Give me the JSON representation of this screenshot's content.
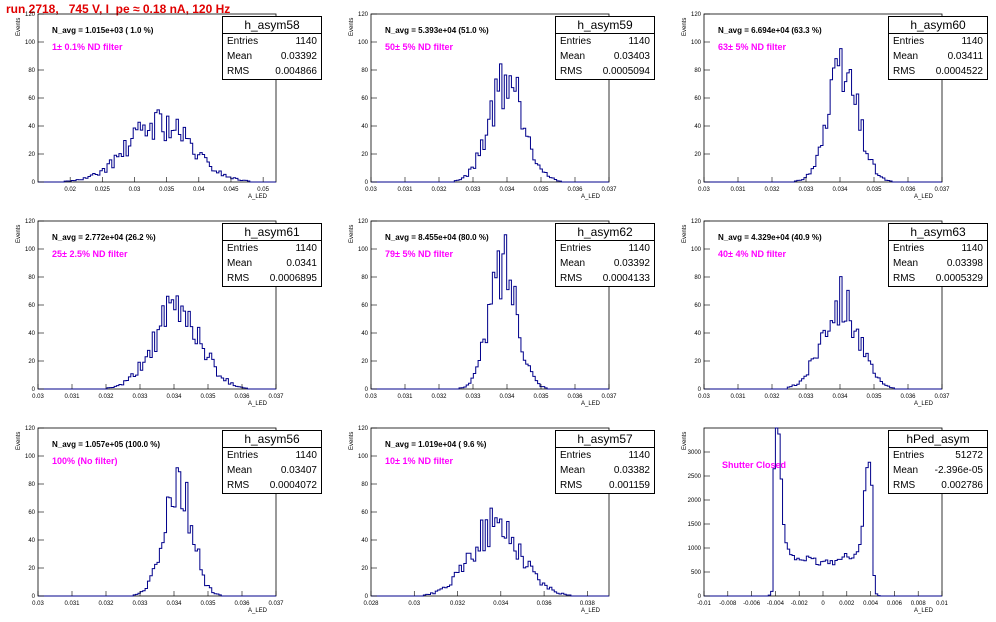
{
  "header": {
    "title": "run 2718,   745 V, I_pe ≈ 0.18 nA, 120 Hz"
  },
  "colors": {
    "histogram": "#00008b",
    "title_red": "#e00000",
    "note_magenta": "#ff00ff"
  },
  "chart_data": [
    {
      "type": "bar",
      "name": "h_asym58",
      "navg": "N_avg = 1.015e+03 ( 1.0 %)",
      "note": "1± 0.1% ND filter",
      "entries": "1140",
      "mean": "0.03392",
      "rms": "0.004866",
      "xlabel": "A_LED",
      "ylabel": "Events",
      "xlim": [
        0.015,
        0.052
      ],
      "ylim": [
        0,
        120
      ],
      "xticks": [
        0.02,
        0.025,
        0.03,
        0.035,
        0.04,
        0.045,
        0.05
      ],
      "xtick_labels": [
        "0.02",
        "0.025",
        "0.03",
        "0.035",
        "0.04",
        "0.045",
        "0.05"
      ],
      "yticks": [
        0,
        20,
        40,
        60,
        80,
        100,
        120
      ],
      "mu": 0.0339,
      "sigma": 0.0049,
      "peak": 42,
      "nbins": 100,
      "seed": 58
    },
    {
      "type": "bar",
      "name": "h_asym59",
      "navg": "N_avg = 5.393e+04 (51.0 %)",
      "note": "50± 5% ND filter",
      "entries": "1140",
      "mean": "0.03403",
      "rms": "0.0005094",
      "xlabel": "A_LED",
      "ylabel": "Events",
      "xlim": [
        0.03,
        0.037
      ],
      "ylim": [
        0,
        120
      ],
      "xticks": [
        0.03,
        0.031,
        0.032,
        0.033,
        0.034,
        0.035,
        0.036,
        0.037
      ],
      "xtick_labels": [
        "0.03",
        "0.031",
        "0.032",
        "0.033",
        "0.034",
        "0.035",
        "0.036",
        "0.037"
      ],
      "yticks": [
        0,
        20,
        40,
        60,
        80,
        100,
        120
      ],
      "mu": 0.034,
      "sigma": 0.00051,
      "peak": 75,
      "nbins": 100,
      "seed": 59
    },
    {
      "type": "bar",
      "name": "h_asym60",
      "navg": "N_avg = 6.694e+04 (63.3 %)",
      "note": "63± 5% ND filter",
      "entries": "1140",
      "mean": "0.03411",
      "rms": "0.0004522",
      "xlabel": "A_LED",
      "ylabel": "Events",
      "xlim": [
        0.03,
        0.037
      ],
      "ylim": [
        0,
        120
      ],
      "xticks": [
        0.03,
        0.031,
        0.032,
        0.033,
        0.034,
        0.035,
        0.036,
        0.037
      ],
      "xtick_labels": [
        "0.03",
        "0.031",
        "0.032",
        "0.033",
        "0.034",
        "0.035",
        "0.036",
        "0.037"
      ],
      "yticks": [
        0,
        20,
        40,
        60,
        80,
        100,
        120
      ],
      "mu": 0.0341,
      "sigma": 0.00045,
      "peak": 80,
      "nbins": 100,
      "seed": 60
    },
    {
      "type": "bar",
      "name": "h_asym61",
      "navg": "N_avg = 2.772e+04 (26.2 %)",
      "note": "25± 2.5% ND filter",
      "entries": "1140",
      "mean": "0.0341",
      "rms": "0.0006895",
      "xlabel": "A_LED",
      "ylabel": "Events",
      "xlim": [
        0.03,
        0.037
      ],
      "ylim": [
        0,
        120
      ],
      "xticks": [
        0.03,
        0.031,
        0.032,
        0.033,
        0.034,
        0.035,
        0.036,
        0.037
      ],
      "xtick_labels": [
        "0.03",
        "0.031",
        "0.032",
        "0.033",
        "0.034",
        "0.035",
        "0.036",
        "0.037"
      ],
      "yticks": [
        0,
        20,
        40,
        60,
        80,
        100,
        120
      ],
      "mu": 0.0341,
      "sigma": 0.00069,
      "peak": 56,
      "nbins": 100,
      "seed": 61
    },
    {
      "type": "bar",
      "name": "h_asym62",
      "navg": "N_avg = 8.455e+04 (80.0 %)",
      "note": "79± 5% ND filter",
      "entries": "1140",
      "mean": "0.03392",
      "rms": "0.0004133",
      "xlabel": "A_LED",
      "ylabel": "Events",
      "xlim": [
        0.03,
        0.037
      ],
      "ylim": [
        0,
        120
      ],
      "xticks": [
        0.03,
        0.031,
        0.032,
        0.033,
        0.034,
        0.035,
        0.036,
        0.037
      ],
      "xtick_labels": [
        "0.03",
        "0.031",
        "0.032",
        "0.033",
        "0.034",
        "0.035",
        "0.036",
        "0.037"
      ],
      "yticks": [
        0,
        20,
        40,
        60,
        80,
        100,
        120
      ],
      "mu": 0.0339,
      "sigma": 0.00041,
      "peak": 90,
      "nbins": 100,
      "seed": 62
    },
    {
      "type": "bar",
      "name": "h_asym63",
      "navg": "N_avg = 4.329e+04 (40.9 %)",
      "note": "40± 4% ND filter",
      "entries": "1140",
      "mean": "0.03398",
      "rms": "0.0005329",
      "xlabel": "A_LED",
      "ylabel": "Events",
      "xlim": [
        0.03,
        0.037
      ],
      "ylim": [
        0,
        120
      ],
      "xticks": [
        0.03,
        0.031,
        0.032,
        0.033,
        0.034,
        0.035,
        0.036,
        0.037
      ],
      "xtick_labels": [
        "0.03",
        "0.031",
        "0.032",
        "0.033",
        "0.034",
        "0.035",
        "0.036",
        "0.037"
      ],
      "yticks": [
        0,
        20,
        40,
        60,
        80,
        100,
        120
      ],
      "mu": 0.034,
      "sigma": 0.00053,
      "peak": 65,
      "nbins": 100,
      "seed": 63
    },
    {
      "type": "bar",
      "name": "h_asym56",
      "navg": "N_avg = 1.057e+05 (100.0 %)",
      "note": "100% (No filter)",
      "entries": "1140",
      "mean": "0.03407",
      "rms": "0.0004072",
      "xlabel": "A_LED",
      "ylabel": "Events",
      "xlim": [
        0.03,
        0.037
      ],
      "ylim": [
        0,
        120
      ],
      "xticks": [
        0.03,
        0.031,
        0.032,
        0.033,
        0.034,
        0.035,
        0.036,
        0.037
      ],
      "xtick_labels": [
        "0.03",
        "0.031",
        "0.032",
        "0.033",
        "0.034",
        "0.035",
        "0.036",
        "0.037"
      ],
      "yticks": [
        0,
        20,
        40,
        60,
        80,
        100,
        120
      ],
      "mu": 0.0341,
      "sigma": 0.00041,
      "peak": 84,
      "nbins": 100,
      "seed": 56
    },
    {
      "type": "bar",
      "name": "h_asym57",
      "navg": "N_avg = 1.019e+04 ( 9.6 %)",
      "note": "10± 1% ND filter",
      "entries": "1140",
      "mean": "0.03382",
      "rms": "0.001159",
      "xlabel": "A_LED",
      "ylabel": "Events",
      "xlim": [
        0.028,
        0.039
      ],
      "ylim": [
        0,
        120
      ],
      "xticks": [
        0.028,
        0.03,
        0.032,
        0.034,
        0.036,
        0.038
      ],
      "xtick_labels": [
        "0.028",
        "0.03",
        "0.032",
        "0.034",
        "0.036",
        "0.038"
      ],
      "yticks": [
        0,
        20,
        40,
        60,
        80,
        100,
        120
      ],
      "mu": 0.0338,
      "sigma": 0.00116,
      "peak": 50,
      "nbins": 100,
      "seed": 57
    },
    {
      "type": "bar",
      "name": "hPed_asym",
      "navg": "",
      "note": "Shutter Closed",
      "entries": "51272",
      "mean": "-2.396e-05",
      "rms": "0.002786",
      "xlabel": "A_LED",
      "ylabel": "Events",
      "xlim": [
        -0.01,
        0.01
      ],
      "ylim": [
        0,
        3500
      ],
      "xticks": [
        -0.01,
        -0.008,
        -0.006,
        -0.004,
        -0.002,
        0,
        0.002,
        0.004,
        0.006,
        0.008,
        0.01
      ],
      "xtick_labels": [
        "-0.01",
        "-0.008",
        "-0.006",
        "-0.004",
        "-0.002",
        "0",
        "0.002",
        "0.004",
        "0.006",
        "0.008",
        "0.01"
      ],
      "yticks": [
        0,
        500,
        1000,
        1500,
        2000,
        2500,
        3000
      ],
      "pedestal": true,
      "nbins": 100,
      "seed": 99
    }
  ]
}
